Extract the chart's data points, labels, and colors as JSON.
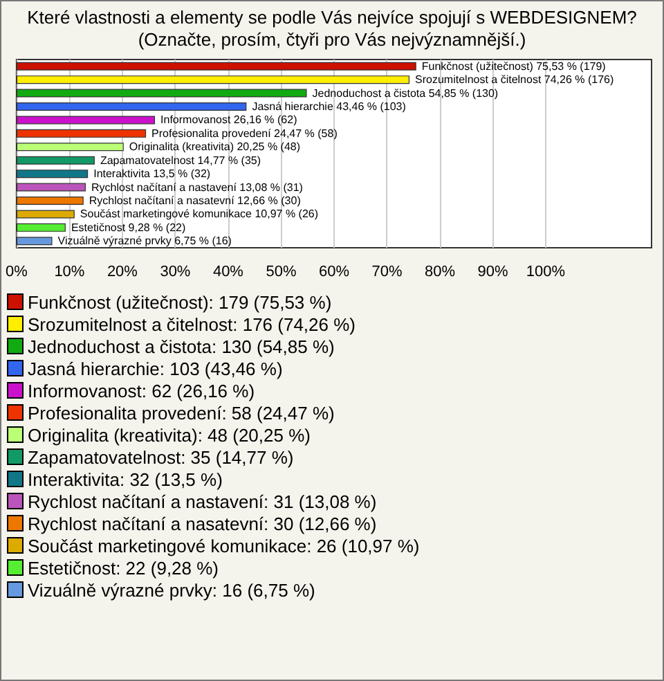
{
  "chart_data": {
    "type": "bar",
    "orientation": "horizontal",
    "title": "Které vlastnosti a elementy se podle Vás nejvíce spojují s WEBDESIGNEM? (Označte, prosím, čtyři pro Vás nejvýznamnější.)",
    "categories": [
      "Funkčnost (užitečnost)",
      "Srozumitelnost a čitelnost",
      "Jednoduchost a čistota",
      "Jasná hierarchie",
      "Informovanost",
      "Profesionalita provedení",
      "Originalita (kreativita)",
      "Zapamatovatelnost",
      "Interaktivita",
      "Rychlost načítaní a nastavení",
      "Rychlost načítaní a nasatevní",
      "Součást marketingové komunikace",
      "Estetičnost",
      "Vizuálně výrazné prvky"
    ],
    "values": [
      75.53,
      74.26,
      54.85,
      43.46,
      26.16,
      24.47,
      20.25,
      14.77,
      13.5,
      13.08,
      12.66,
      10.97,
      9.28,
      6.75
    ],
    "value_labels": [
      "75,53 % (179)",
      "74,26 % (176)",
      "54,85 % (130)",
      "43,46 % (103)",
      "26,16 % (62)",
      "24,47 % (58)",
      "20,25 % (48)",
      "14,77 % (35)",
      "13,5 % (32)",
      "13,08 % (31)",
      "12,66 % (30)",
      "10,97 % (26)",
      "9,28 % (22)",
      "6,75 % (16)"
    ],
    "colors": [
      "#cc1100",
      "#ffee00",
      "#11aa11",
      "#3366ee",
      "#cc11cc",
      "#ee3300",
      "#bbff77",
      "#119966",
      "#117788",
      "#bb55bb",
      "#ee7700",
      "#ddaa00",
      "#55ee33",
      "#6699dd"
    ],
    "annotations": [
      "Funkčnost (užitečnost): 179 (75,53 %)",
      "Srozumitelnost a čitelnost: 176 (74,26 %)",
      "Jednoduchost a čistota: 130 (54,85 %)",
      "Jasná hierarchie: 103 (43,46 %)",
      "Informovanost: 62 (26,16 %)",
      "Profesionalita provedení: 58 (24,47 %)",
      "Originalita (kreativita): 48 (20,25 %)",
      "Zapamatovatelnost: 35 (14,77 %)",
      "Interaktivita: 32 (13,5 %)",
      "Rychlost načítaní a nastavení: 31 (13,08 %)",
      "Rychlost načítaní a nasatevní: 30 (12,66 %)",
      "Součást marketingové komunikace: 26 (10,97 %)",
      "Estetičnost: 22 (9,28 %)",
      "Vizuálně výrazné prvky: 16 (6,75 %)"
    ],
    "xlim": [
      0,
      120
    ],
    "xticks": [
      {
        "value": 0,
        "label": "0%"
      },
      {
        "value": 10,
        "label": "10%"
      },
      {
        "value": 20,
        "label": "20%"
      },
      {
        "value": 30,
        "label": "30%"
      },
      {
        "value": 40,
        "label": "40%"
      },
      {
        "value": 50,
        "label": "50%"
      },
      {
        "value": 60,
        "label": "60%"
      },
      {
        "value": 70,
        "label": "70%"
      },
      {
        "value": 80,
        "label": "80%"
      },
      {
        "value": 90,
        "label": "90%"
      },
      {
        "value": 100,
        "label": "100%"
      }
    ],
    "grid": "x",
    "tick_labels": "x"
  }
}
